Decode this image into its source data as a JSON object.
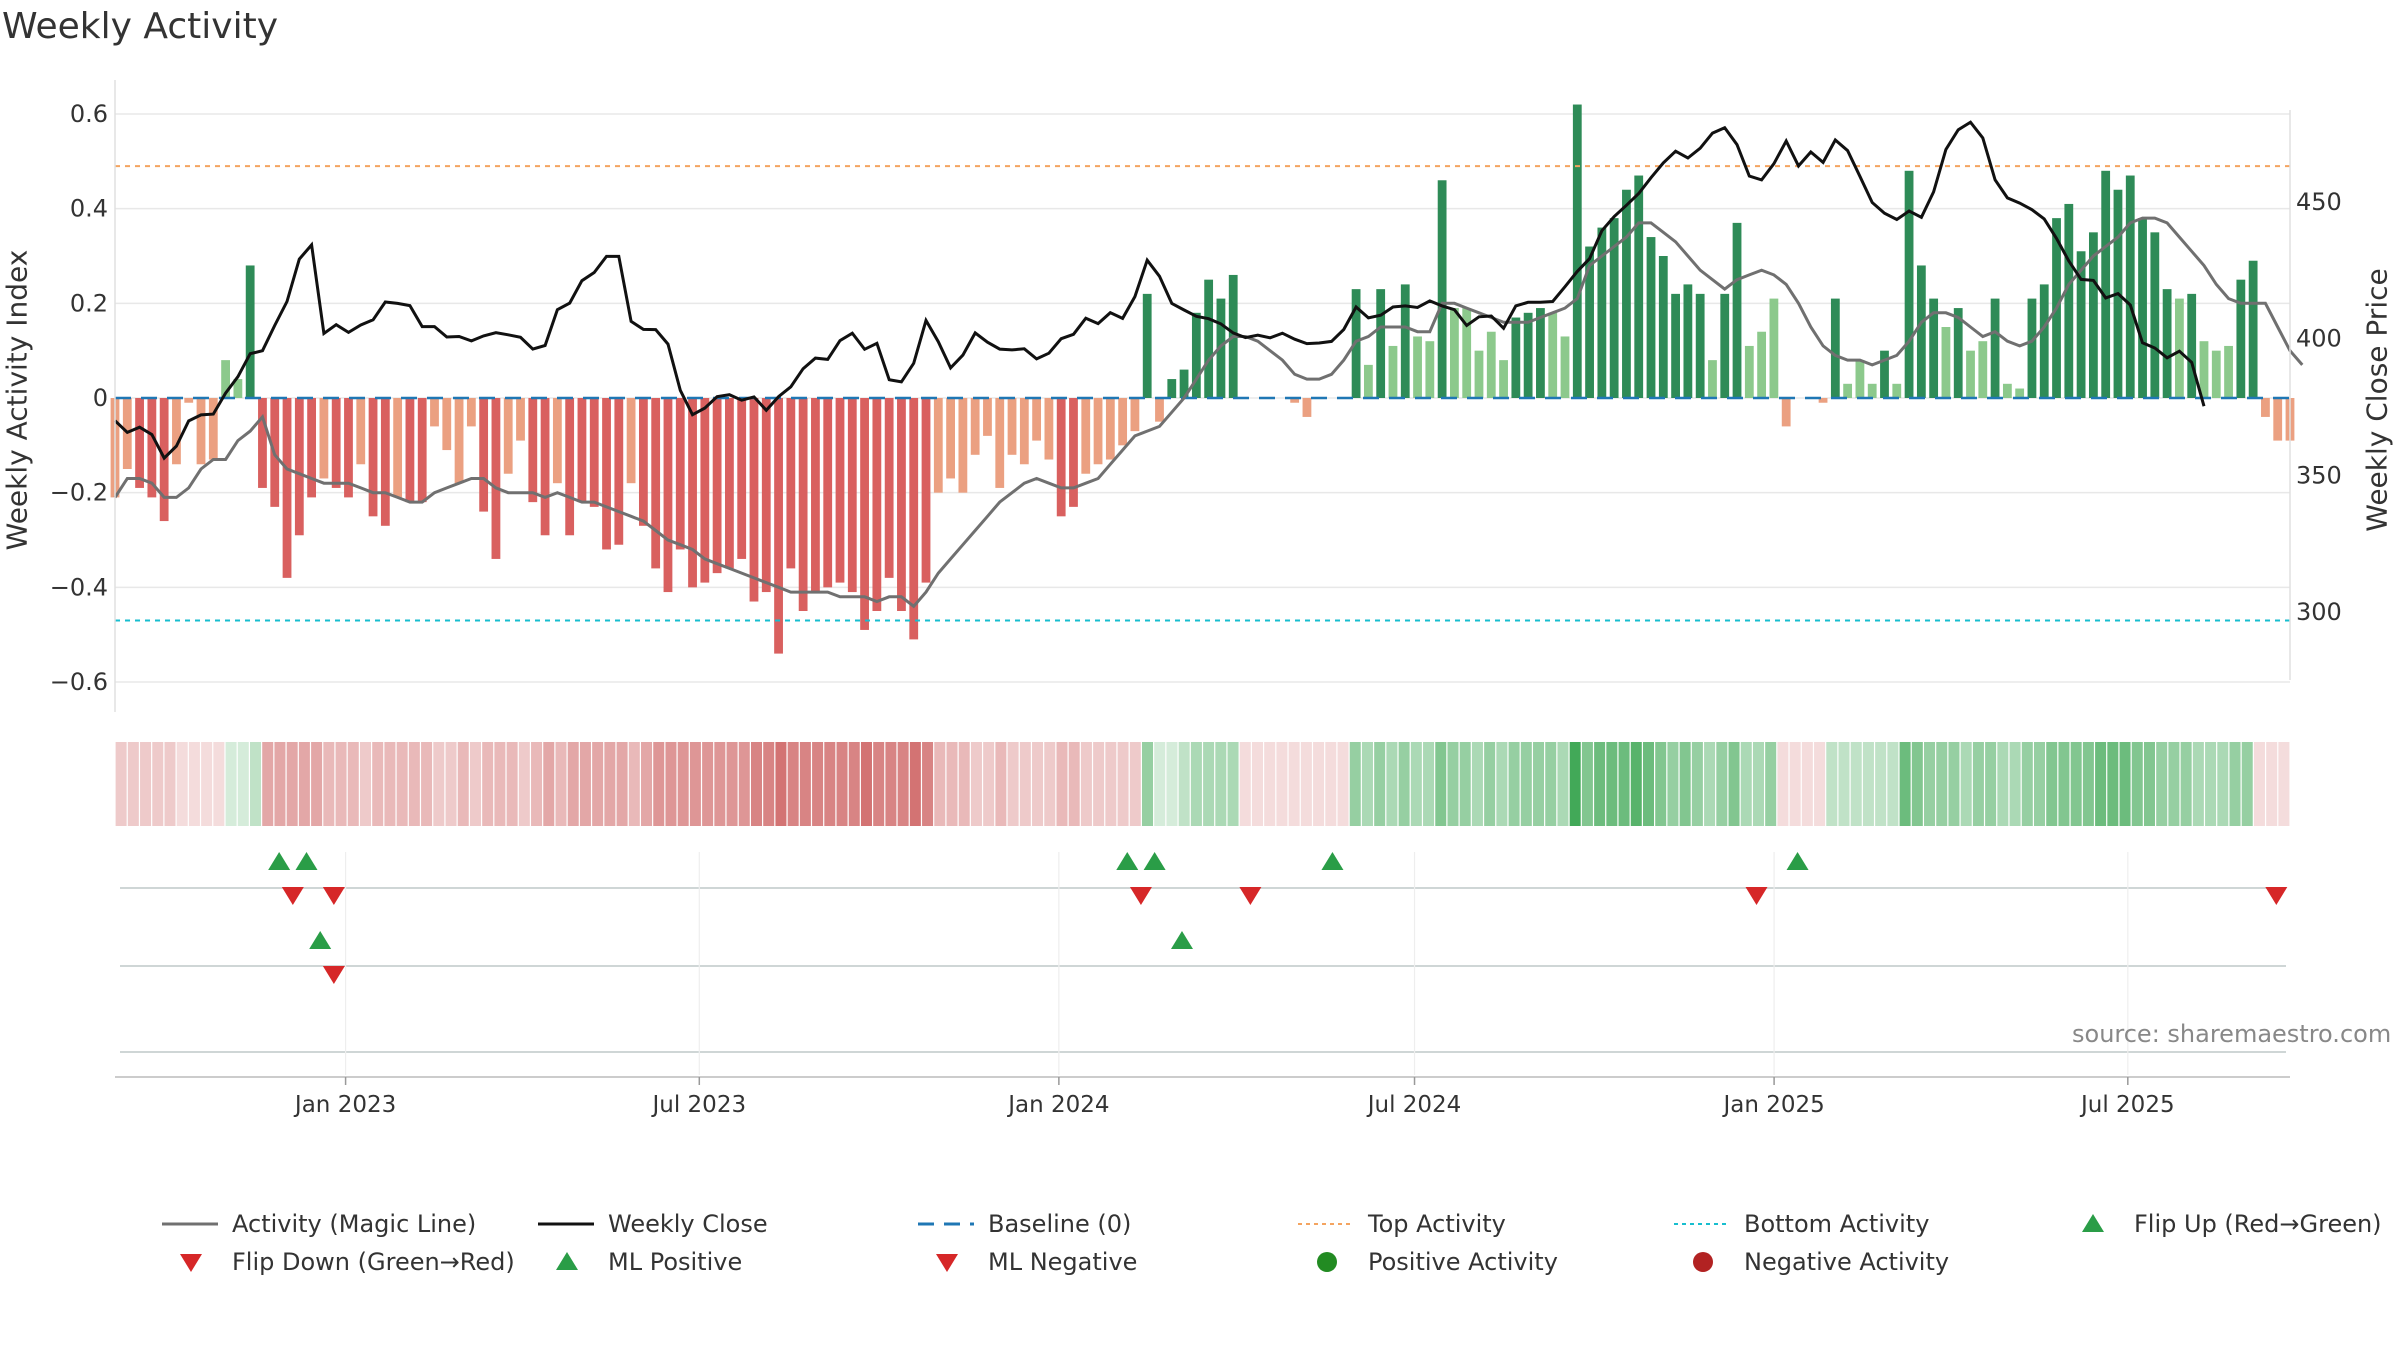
{
  "title": "Weekly Activity",
  "source": "source: sharemaestro.com",
  "colors": {
    "dark_green": "#2e8b57",
    "light_green": "#8cc98c",
    "dark_red": "#d9605f",
    "light_red": "#eba081",
    "magic": "#707070",
    "close": "#111111",
    "baseline": "#1f77b4",
    "top": "#f4a460",
    "bottom": "#17becf",
    "marker_up": "#2a9d47",
    "marker_down": "#d62728",
    "pos_dot": "#228b22",
    "neg_dot": "#b22222"
  },
  "chart_data": {
    "type": "bar",
    "title": "Weekly Activity",
    "xlabel": "",
    "ylabel": "Weekly Activity Index",
    "y2label": "Weekly Close Price",
    "ylim": [
      -0.67,
      0.62
    ],
    "y2lim": [
      262,
      490
    ],
    "yticks": [
      0.6,
      0.4,
      0.2,
      0,
      -0.2,
      -0.4,
      -0.6
    ],
    "yticklabels": [
      "0.6",
      "0.4",
      "0.2",
      "0",
      "−0.2",
      "−0.4",
      "−0.6"
    ],
    "y2ticks": [
      450,
      400,
      350,
      300
    ],
    "y2ticklabels": [
      "450",
      "400",
      "350",
      "300"
    ],
    "xticks": [
      "2023-01-01",
      "2023-07-01",
      "2024-01-01",
      "2024-07-01",
      "2025-01-01",
      "2025-07-01"
    ],
    "xticklabels": [
      "Jan 2023",
      "Jul 2023",
      "Jan 2024",
      "Jul 2024",
      "Jan 2025",
      "Jul 2025"
    ],
    "x_start": "2022-09-05",
    "x_end": "2025-09-22",
    "grid": true,
    "legend_position": "bottom",
    "top_activity": 0.49,
    "bottom_activity": -0.47,
    "baseline": 0,
    "activity": [
      -0.21,
      -0.15,
      -0.19,
      -0.21,
      -0.26,
      -0.14,
      -0.01,
      -0.14,
      -0.13,
      0.08,
      0.04,
      0.28,
      -0.19,
      -0.23,
      -0.38,
      -0.29,
      -0.21,
      -0.17,
      -0.19,
      -0.21,
      -0.14,
      -0.25,
      -0.27,
      -0.21,
      -0.22,
      -0.22,
      -0.06,
      -0.11,
      -0.18,
      -0.06,
      -0.24,
      -0.34,
      -0.16,
      -0.09,
      -0.22,
      -0.29,
      -0.18,
      -0.29,
      -0.22,
      -0.23,
      -0.32,
      -0.31,
      -0.18,
      -0.27,
      -0.36,
      -0.41,
      -0.32,
      -0.4,
      -0.39,
      -0.37,
      -0.36,
      -0.34,
      -0.43,
      -0.41,
      -0.54,
      -0.36,
      -0.45,
      -0.41,
      -0.4,
      -0.39,
      -0.41,
      -0.49,
      -0.45,
      -0.38,
      -0.45,
      -0.51,
      -0.39,
      -0.2,
      -0.17,
      -0.2,
      -0.12,
      -0.08,
      -0.19,
      -0.12,
      -0.14,
      -0.09,
      -0.13,
      -0.25,
      -0.23,
      -0.16,
      -0.14,
      -0.13,
      -0.1,
      -0.07,
      0.22,
      -0.05,
      0.04,
      0.06,
      0.18,
      0.25,
      0.21,
      0.26,
      0.0,
      0.0,
      0.0,
      0.0,
      -0.01,
      -0.04,
      0.0,
      0.0,
      0.0,
      0.23,
      0.07,
      0.23,
      0.11,
      0.24,
      0.13,
      0.12,
      0.46,
      0.19,
      0.19,
      0.1,
      0.14,
      0.08,
      0.17,
      0.18,
      0.19,
      0.18,
      0.13,
      0.62,
      0.32,
      0.36,
      0.38,
      0.44,
      0.47,
      0.34,
      0.3,
      0.22,
      0.24,
      0.22,
      0.08,
      0.22,
      0.37,
      0.11,
      0.14,
      0.21,
      -0.06,
      0.0,
      0.0,
      -0.01,
      0.21,
      0.03,
      0.08,
      0.03,
      0.1,
      0.03,
      0.48,
      0.28,
      0.21,
      0.15,
      0.19,
      0.1,
      0.12,
      0.21,
      0.03,
      0.02,
      0.21,
      0.24,
      0.38,
      0.41,
      0.31,
      0.35,
      0.48,
      0.44,
      0.47,
      0.38,
      0.35,
      0.23,
      0.21,
      0.22,
      0.12,
      0.1,
      0.11,
      0.25,
      0.29,
      -0.04,
      -0.09,
      -0.09
    ],
    "magic_line": [
      -0.21,
      -0.17,
      -0.17,
      -0.18,
      -0.21,
      -0.21,
      -0.19,
      -0.15,
      -0.13,
      -0.13,
      -0.09,
      -0.07,
      -0.04,
      -0.12,
      -0.15,
      -0.16,
      -0.17,
      -0.18,
      -0.18,
      -0.18,
      -0.19,
      -0.2,
      -0.2,
      -0.21,
      -0.22,
      -0.22,
      -0.2,
      -0.19,
      -0.18,
      -0.17,
      -0.17,
      -0.19,
      -0.2,
      -0.2,
      -0.2,
      -0.21,
      -0.2,
      -0.21,
      -0.22,
      -0.22,
      -0.23,
      -0.24,
      -0.25,
      -0.26,
      -0.28,
      -0.3,
      -0.31,
      -0.32,
      -0.34,
      -0.35,
      -0.36,
      -0.37,
      -0.38,
      -0.39,
      -0.4,
      -0.41,
      -0.41,
      -0.41,
      -0.41,
      -0.42,
      -0.42,
      -0.42,
      -0.43,
      -0.42,
      -0.42,
      -0.44,
      -0.41,
      -0.37,
      -0.34,
      -0.31,
      -0.28,
      -0.25,
      -0.22,
      -0.2,
      -0.18,
      -0.17,
      -0.18,
      -0.19,
      -0.19,
      -0.18,
      -0.17,
      -0.14,
      -0.11,
      -0.08,
      -0.07,
      -0.06,
      -0.03,
      0.0,
      0.04,
      0.08,
      0.11,
      0.13,
      0.13,
      0.12,
      0.1,
      0.08,
      0.05,
      0.04,
      0.04,
      0.05,
      0.08,
      0.12,
      0.13,
      0.15,
      0.15,
      0.15,
      0.14,
      0.14,
      0.2,
      0.2,
      0.19,
      0.18,
      0.17,
      0.16,
      0.16,
      0.16,
      0.17,
      0.18,
      0.19,
      0.21,
      0.28,
      0.3,
      0.32,
      0.34,
      0.37,
      0.37,
      0.35,
      0.33,
      0.3,
      0.27,
      0.25,
      0.23,
      0.25,
      0.26,
      0.27,
      0.26,
      0.24,
      0.2,
      0.15,
      0.11,
      0.09,
      0.08,
      0.08,
      0.07,
      0.08,
      0.09,
      0.12,
      0.16,
      0.18,
      0.18,
      0.17,
      0.15,
      0.13,
      0.14,
      0.12,
      0.11,
      0.12,
      0.15,
      0.19,
      0.24,
      0.27,
      0.3,
      0.32,
      0.34,
      0.37,
      0.38,
      0.38,
      0.37,
      0.34,
      0.31,
      0.28,
      0.24,
      0.21,
      0.2,
      0.2,
      0.2,
      0.15,
      0.1,
      0.07
    ],
    "weekly_close": [
      370.0,
      365.7,
      367.6,
      364.9,
      356.3,
      360.7,
      369.9,
      372.1,
      372.4,
      380.1,
      386.1,
      394.5,
      395.6,
      404.8,
      413.6,
      429.1,
      434.3,
      401.9,
      405.1,
      402.3,
      405.0,
      406.9,
      413.4,
      412.9,
      412.1,
      404.4,
      404.4,
      400.6,
      400.8,
      399.2,
      401.0,
      402.2,
      401.4,
      400.5,
      396.2,
      397.5,
      410.6,
      413.0,
      421.2,
      424.2,
      430.1,
      430.1,
      406.3,
      403.4,
      403.3,
      398.0,
      381.1,
      372.2,
      374.6,
      378.8,
      379.5,
      377.5,
      378.7,
      373.8,
      378.8,
      382.4,
      389.0,
      392.9,
      392.4,
      399.3,
      402.0,
      396.1,
      398.3,
      385.0,
      384.2,
      391.0,
      406.7,
      398.9,
      389.3,
      394.0,
      402.1,
      398.7,
      396.2,
      395.9,
      396.3,
      392.6,
      394.7,
      400.0,
      401.6,
      407.5,
      405.5,
      409.5,
      407.4,
      415.4,
      428.7,
      422.8,
      412.9,
      410.5,
      408.2,
      407.3,
      405.4,
      402.1,
      400.4,
      401.3,
      400.3,
      402.0,
      399.8,
      398.2,
      398.4,
      399.0,
      403.4,
      411.6,
      407.6,
      408.6,
      411.6,
      412.0,
      411.4,
      413.8,
      412.0,
      410.6,
      404.8,
      408.0,
      408.3,
      403.8,
      412.0,
      413.3,
      413.3,
      413.6,
      419.0,
      424.6,
      429.3,
      439.5,
      444.7,
      448.8,
      453.1,
      458.9,
      464.3,
      468.6,
      466.1,
      469.7,
      475.2,
      477.2,
      471.0,
      459.5,
      458.1,
      464.0,
      472.3,
      463.2,
      468.3,
      464.5,
      472.7,
      468.8,
      459.4,
      449.8,
      445.9,
      443.6,
      446.7,
      444.4,
      453.7,
      469.2,
      476.4,
      479.2,
      473.4,
      458.1,
      451.5,
      449.6,
      447.2,
      443.8,
      436.7,
      428.4,
      421.7,
      421.3,
      414.9,
      416.5,
      412.3,
      398.5,
      396.6,
      393.0,
      395.4,
      391.3,
      375.3
    ],
    "heatmap_intensity": [
      -0.3,
      -0.3,
      -0.3,
      -0.3,
      -0.3,
      -0.2,
      -0.1,
      -0.2,
      -0.2,
      0.2,
      0.2,
      0.3,
      -0.5,
      -0.5,
      -0.5,
      -0.5,
      -0.5,
      -0.4,
      -0.4,
      -0.4,
      -0.3,
      -0.4,
      -0.4,
      -0.4,
      -0.4,
      -0.4,
      -0.3,
      -0.3,
      -0.4,
      -0.3,
      -0.4,
      -0.4,
      -0.4,
      -0.3,
      -0.4,
      -0.5,
      -0.4,
      -0.5,
      -0.5,
      -0.5,
      -0.5,
      -0.5,
      -0.4,
      -0.5,
      -0.6,
      -0.6,
      -0.6,
      -0.6,
      -0.6,
      -0.6,
      -0.6,
      -0.6,
      -0.7,
      -0.7,
      -0.8,
      -0.7,
      -0.7,
      -0.7,
      -0.7,
      -0.7,
      -0.7,
      -0.8,
      -0.7,
      -0.7,
      -0.7,
      -0.8,
      -0.7,
      -0.4,
      -0.4,
      -0.4,
      -0.3,
      -0.3,
      -0.4,
      -0.3,
      -0.3,
      -0.3,
      -0.3,
      -0.4,
      -0.4,
      -0.3,
      -0.3,
      -0.3,
      -0.3,
      -0.3,
      0.5,
      0.2,
      0.2,
      0.3,
      0.4,
      0.4,
      0.4,
      0.4,
      -0.2,
      -0.2,
      -0.2,
      -0.2,
      -0.2,
      -0.2,
      -0.2,
      -0.2,
      -0.2,
      0.5,
      0.4,
      0.5,
      0.4,
      0.5,
      0.4,
      0.4,
      0.6,
      0.5,
      0.5,
      0.4,
      0.5,
      0.4,
      0.5,
      0.5,
      0.5,
      0.5,
      0.4,
      0.9,
      0.6,
      0.7,
      0.7,
      0.7,
      0.8,
      0.7,
      0.6,
      0.5,
      0.6,
      0.5,
      0.4,
      0.5,
      0.6,
      0.4,
      0.4,
      0.5,
      -0.2,
      -0.2,
      -0.2,
      -0.2,
      0.3,
      0.3,
      0.3,
      0.3,
      0.3,
      0.3,
      0.7,
      0.6,
      0.5,
      0.5,
      0.5,
      0.4,
      0.5,
      0.5,
      0.4,
      0.4,
      0.5,
      0.5,
      0.6,
      0.6,
      0.6,
      0.6,
      0.7,
      0.7,
      0.7,
      0.6,
      0.6,
      0.5,
      0.5,
      0.5,
      0.4,
      0.4,
      0.4,
      0.5,
      0.5,
      -0.2,
      -0.2,
      -0.2
    ],
    "flip_up_dates": [
      "2022-11-28",
      "2022-12-12",
      "2024-02-05",
      "2024-02-19",
      "2024-05-20",
      "2025-01-13"
    ],
    "flip_down_dates": [
      "2022-12-05",
      "2022-12-26",
      "2024-02-12",
      "2024-04-08",
      "2024-12-23",
      "2025-09-15"
    ],
    "ml_positive_dates": [
      "2022-12-19",
      "2024-03-04"
    ],
    "ml_negative_dates": [
      "2022-12-26"
    ]
  },
  "legend": [
    {
      "label": "Activity (Magic Line)",
      "kind": "line",
      "color": "#707070"
    },
    {
      "label": "Weekly Close",
      "kind": "line",
      "color": "#111111"
    },
    {
      "label": "Baseline (0)",
      "kind": "dash",
      "color": "#1f77b4"
    },
    {
      "label": "Top Activity",
      "kind": "dot-line",
      "color": "#f4a460"
    },
    {
      "label": "Bottom Activity",
      "kind": "dot-line",
      "color": "#17becf"
    },
    {
      "label": "Flip Up (Red→Green)",
      "kind": "tri-up",
      "color": "#2a9d47"
    },
    {
      "label": "Flip Down (Green→Red)",
      "kind": "tri-down",
      "color": "#d62728"
    },
    {
      "label": "ML Positive",
      "kind": "tri-up",
      "color": "#2a9d47"
    },
    {
      "label": "ML Negative",
      "kind": "tri-down",
      "color": "#d62728"
    },
    {
      "label": "Positive Activity",
      "kind": "circle",
      "color": "#228b22"
    },
    {
      "label": "Negative Activity",
      "kind": "circle",
      "color": "#b22222"
    }
  ]
}
